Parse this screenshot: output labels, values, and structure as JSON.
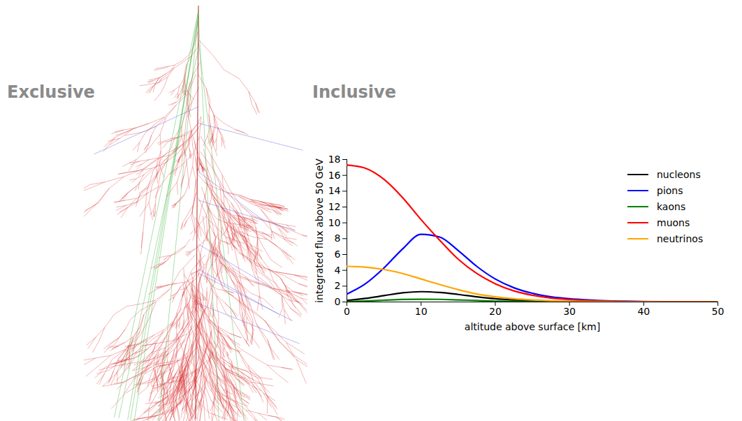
{
  "illustration": {
    "label": "Exclusive"
  },
  "chart_data": {
    "type": "line",
    "title": "Inclusive",
    "x_label": "altitude above surface [km]",
    "y_label": "integrated flux above 50 GeV",
    "x": [
      0,
      2.5,
      5,
      7.5,
      10,
      12.5,
      15,
      17.5,
      20,
      22.5,
      25,
      27.5,
      30,
      32.5,
      35,
      37.5,
      40,
      42.5,
      45,
      47.5,
      50
    ],
    "series": [
      {
        "name": "nucleons",
        "color": "#000000",
        "values": [
          0.2,
          0.45,
          0.8,
          1.15,
          1.3,
          1.2,
          0.95,
          0.65,
          0.4,
          0.25,
          0.15,
          0.08,
          0.05,
          0.03,
          0.02,
          0.01,
          0.01,
          0,
          0,
          0,
          0
        ]
      },
      {
        "name": "pions",
        "color": "#0000ff",
        "values": [
          1.0,
          2.3,
          4.3,
          6.7,
          8.55,
          8.2,
          6.5,
          4.5,
          2.9,
          1.8,
          1.1,
          0.65,
          0.4,
          0.25,
          0.15,
          0.1,
          0.06,
          0.03,
          0.02,
          0.01,
          0
        ]
      },
      {
        "name": "kaons",
        "color": "#008000",
        "values": [
          0.05,
          0.12,
          0.22,
          0.32,
          0.35,
          0.33,
          0.26,
          0.18,
          0.11,
          0.07,
          0.04,
          0.02,
          0.01,
          0,
          0,
          0,
          0,
          0,
          0,
          0,
          0
        ]
      },
      {
        "name": "muons",
        "color": "#ff0000",
        "values": [
          17.3,
          16.9,
          15.5,
          13.2,
          10.4,
          7.8,
          5.4,
          3.6,
          2.3,
          1.4,
          0.85,
          0.5,
          0.3,
          0.17,
          0.1,
          0.05,
          0.03,
          0.02,
          0.01,
          0.005,
          0
        ]
      },
      {
        "name": "neutrinos",
        "color": "#ffa500",
        "values": [
          4.5,
          4.4,
          4.1,
          3.6,
          2.9,
          2.2,
          1.55,
          1.0,
          0.65,
          0.4,
          0.25,
          0.15,
          0.09,
          0.05,
          0.03,
          0.02,
          0.01,
          0,
          0,
          0,
          0
        ]
      }
    ],
    "xlim": [
      0,
      50
    ],
    "xticks": [
      0,
      10,
      20,
      30,
      40,
      50
    ],
    "ylim": [
      0,
      18
    ],
    "yticks": [
      0,
      2,
      4,
      6,
      8,
      10,
      12,
      14,
      16,
      18
    ],
    "legend": "top-right",
    "grid": false
  }
}
